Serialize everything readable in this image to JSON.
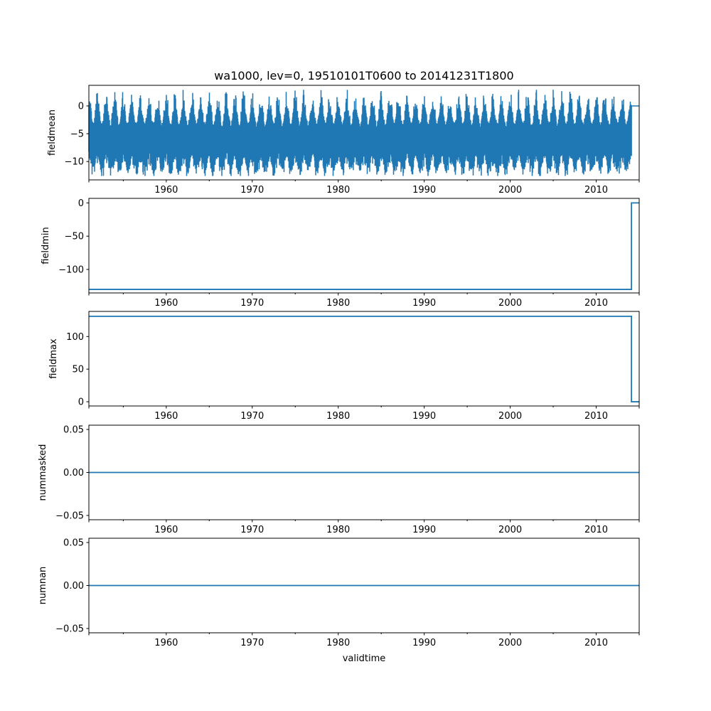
{
  "chart_data": [
    {
      "type": "line",
      "title": "wa1000, lev=0, 19510101T0600 to 20141231T1800",
      "xlabel": "validtime",
      "ylabel": "fieldmean",
      "xlim": [
        1951.0,
        2015.0
      ],
      "ylim": [
        -13.3,
        3.7
      ],
      "xticks": [
        1960,
        1970,
        1980,
        1990,
        2000,
        2010
      ],
      "yticks": [
        {
          "v": 0,
          "label": "0"
        },
        {
          "v": -5,
          "label": "−5"
        },
        {
          "v": -10,
          "label": "−10"
        }
      ],
      "series_summary": {
        "x_start": 1951.0,
        "x_end_data": 2014.1,
        "typical_low": -10.5,
        "typical_high": -1.0,
        "extreme_low": -12.6,
        "extreme_high": 2.9,
        "mean": -6.0,
        "after_end_value": 0
      },
      "color": "#1f77b4"
    },
    {
      "type": "line",
      "ylabel": "fieldmin",
      "xlim": [
        1951.0,
        2015.0
      ],
      "ylim": [
        -135.3,
        6.8
      ],
      "xticks": [
        1960,
        1970,
        1980,
        1990,
        2000,
        2010
      ],
      "yticks": [
        {
          "v": 0,
          "label": "0"
        },
        {
          "v": -50,
          "label": "−50"
        },
        {
          "v": -100,
          "label": "−100"
        }
      ],
      "segments": [
        {
          "x": [
            1951.0,
            2014.1
          ],
          "y": -130
        },
        {
          "x": [
            2014.1,
            2015.0
          ],
          "y": 0
        }
      ],
      "color": "#1f77b4"
    },
    {
      "type": "line",
      "ylabel": "fieldmax",
      "xlim": [
        1951.0,
        2015.0
      ],
      "ylim": [
        -6.5,
        138.5
      ],
      "xticks": [
        1960,
        1970,
        1980,
        1990,
        2000,
        2010
      ],
      "yticks": [
        {
          "v": 0,
          "label": "0"
        },
        {
          "v": 50,
          "label": "50"
        },
        {
          "v": 100,
          "label": "100"
        }
      ],
      "segments": [
        {
          "x": [
            1951.0,
            2014.1
          ],
          "y": 131
        },
        {
          "x": [
            2014.1,
            2015.0
          ],
          "y": 0
        }
      ],
      "color": "#1f77b4"
    },
    {
      "type": "line",
      "ylabel": "nummasked",
      "xlim": [
        1951.0,
        2015.0
      ],
      "ylim": [
        -0.055,
        0.055
      ],
      "xticks": [
        1960,
        1970,
        1980,
        1990,
        2000,
        2010
      ],
      "yticks": [
        {
          "v": 0.05,
          "label": "0.05"
        },
        {
          "v": 0,
          "label": "0.00"
        },
        {
          "v": -0.05,
          "label": "−0.05"
        }
      ],
      "segments": [
        {
          "x": [
            1951.0,
            2015.0
          ],
          "y": 0
        }
      ],
      "color": "#1f77b4"
    },
    {
      "type": "line",
      "ylabel": "numnan",
      "xlim": [
        1951.0,
        2015.0
      ],
      "ylim": [
        -0.055,
        0.055
      ],
      "xticks": [
        1960,
        1970,
        1980,
        1990,
        2000,
        2010
      ],
      "yticks": [
        {
          "v": 0.05,
          "label": "0.05"
        },
        {
          "v": 0,
          "label": "0.00"
        },
        {
          "v": -0.05,
          "label": "−0.05"
        }
      ],
      "segments": [
        {
          "x": [
            1951.0,
            2015.0
          ],
          "y": 0
        }
      ],
      "color": "#1f77b4"
    }
  ]
}
